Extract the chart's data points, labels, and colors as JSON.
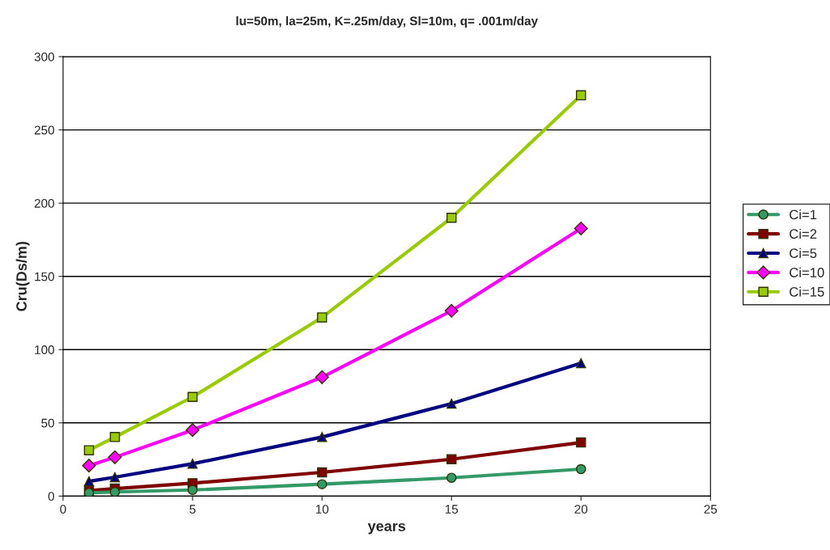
{
  "chart_data": {
    "type": "line",
    "title": "lu=50m, la=25m, K=.25m/day, Sl=10m, q= .001m/day",
    "xlabel": "years",
    "ylabel": "Cru(Ds/m)",
    "x": [
      1,
      2,
      5,
      10,
      15,
      20
    ],
    "series": [
      {
        "name": "Ci=1",
        "color": "#339966",
        "marker": "circle",
        "values": [
          2.2,
          2.8,
          4.2,
          8.1,
          12.5,
          18.4
        ]
      },
      {
        "name": "Ci=2",
        "color": "#800000",
        "marker": "square",
        "values": [
          3.7,
          5.1,
          8.8,
          16.2,
          25.2,
          36.6
        ]
      },
      {
        "name": "Ci=5",
        "color": "#000080",
        "marker": "triangle",
        "values": [
          10.1,
          12.9,
          22.1,
          40.3,
          63.1,
          90.7
        ]
      },
      {
        "name": "Ci=10",
        "color": "#ff00ff",
        "marker": "diamond",
        "values": [
          20.8,
          26.5,
          45.1,
          81.2,
          126.5,
          182.7
        ]
      },
      {
        "name": "Ci=15",
        "color": "#99cc00",
        "marker": "square",
        "values": [
          31.3,
          40.3,
          67.7,
          122,
          190,
          273.6
        ]
      }
    ],
    "xlim": [
      0,
      25
    ],
    "xticks": [
      0,
      5,
      10,
      15,
      20,
      25
    ],
    "ylim": [
      0,
      300
    ],
    "yticks": [
      0,
      50,
      100,
      150,
      200,
      250,
      300
    ],
    "grid": "y",
    "legend": "right",
    "line_style": "solid"
  }
}
